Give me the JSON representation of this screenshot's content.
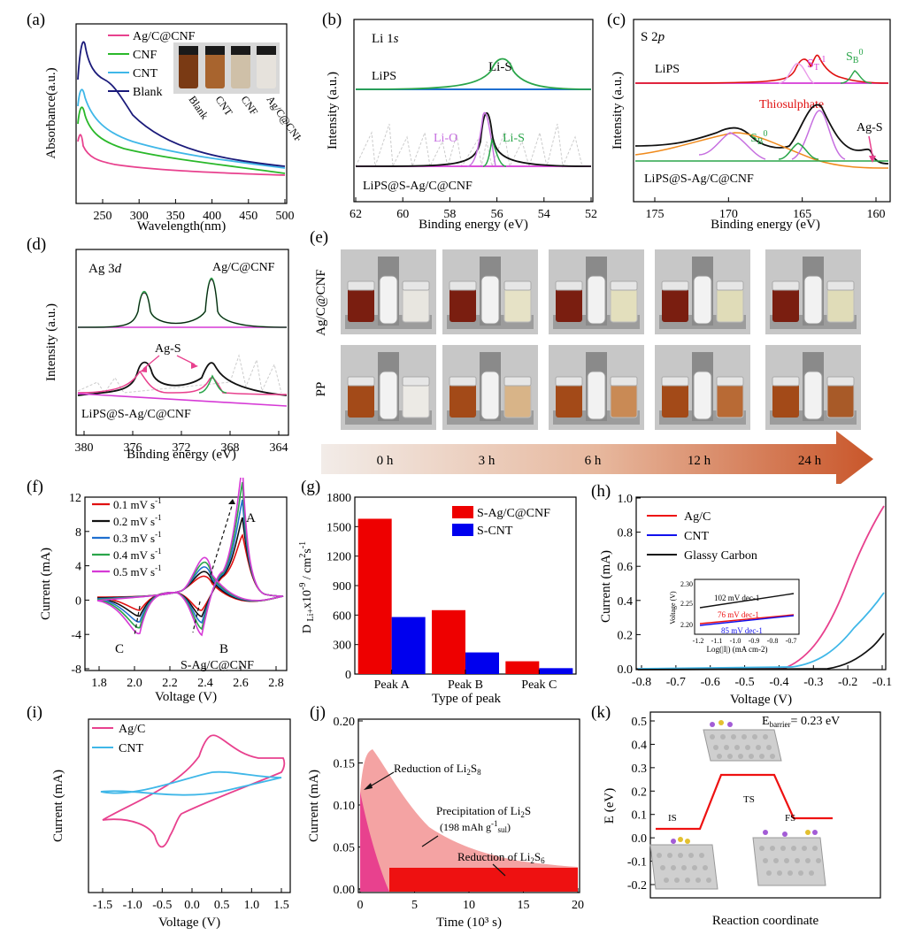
{
  "figure": {
    "labels": [
      "(a)",
      "(b)",
      "(c)",
      "(d)",
      "(e)",
      "(f)",
      "(g)",
      "(h)",
      "(i)",
      "(j)",
      "(k)"
    ]
  },
  "panel_a": {
    "xlabel": "Wavelength(nm)",
    "ylabel": "Absorbance(a.u.)",
    "legend": [
      "Ag/C@CNF",
      "CNF",
      "CNT",
      "Blank"
    ],
    "colors": [
      "#e8418e",
      "#2ab82a",
      "#3fb7e8",
      "#1a1a7a"
    ],
    "ticks_x": [
      "250",
      "300",
      "350",
      "400",
      "450",
      "500"
    ],
    "vial_labels": [
      "Blank",
      "CNT",
      "CNF",
      "Ag/C@CNF"
    ]
  },
  "panel_b": {
    "title": "Li 1s",
    "xlabel": "Binding energy (eV)",
    "ylabel": "Intensity (a.u.)",
    "ticks_x": [
      "62",
      "60",
      "58",
      "56",
      "54",
      "52"
    ],
    "top_label": "LiPS",
    "peak_top": "Li-S",
    "bottom_label": "LiPS@S-Ag/C@CNF",
    "peak_lio": "Li-O",
    "peak_lis": "Li-S"
  },
  "panel_c": {
    "title": "S 2p",
    "xlabel": "Binding energy (eV)",
    "ylabel": "Intensity (a.u.)",
    "ticks_x": [
      "175",
      "170",
      "165",
      "160"
    ],
    "top_label": "LiPS",
    "st": "ST-1",
    "sb_top": "SB0",
    "thio": "Thiosulphate",
    "sb_bot": "SB0",
    "ags": "Ag-S",
    "bottom_label": "LiPS@S-Ag/C@CNF"
  },
  "panel_d": {
    "title": "Ag 3d",
    "xlabel": "Binding energy (eV)",
    "ylabel": "Intensity (a.u.)",
    "ticks_x": [
      "380",
      "376",
      "372",
      "368",
      "364"
    ],
    "top_label": "Ag/C@CNF",
    "ags": "Ag-S",
    "bottom_label": "LiPS@S-Ag/C@CNF"
  },
  "panel_e": {
    "row_labels": [
      "Ag/C@CNF",
      "PP"
    ],
    "times": [
      "0 h",
      "3 h",
      "6 h",
      "12 h",
      "24 h"
    ]
  },
  "panel_f": {
    "xlabel": "Voltage (V)",
    "ylabel": "Current (mA)",
    "legend": [
      "0.1 mV s-1",
      "0.2 mV s-1",
      "0.3 mV s-1",
      "0.4 mV s-1",
      "0.5 mV s-1"
    ],
    "colors": [
      "#e01010",
      "#111111",
      "#1f6fd0",
      "#2aa54a",
      "#d63ad6"
    ],
    "ticks_x": [
      "1.8",
      "2.0",
      "2.2",
      "2.4",
      "2.6",
      "2.8"
    ],
    "ticks_y": [
      "-8",
      "-4",
      "0",
      "4",
      "8",
      "12"
    ],
    "peaks": [
      "A",
      "B",
      "C"
    ],
    "sample": "S-Ag/C@CNF"
  },
  "chart_data": {
    "type": "bar",
    "categories": [
      "Peak A",
      "Peak B",
      "Peak C"
    ],
    "series": [
      {
        "name": "S-Ag/C@CNF",
        "values": [
          1580,
          650,
          130
        ],
        "color": "#ee0000"
      },
      {
        "name": "S-CNT",
        "values": [
          580,
          220,
          60
        ],
        "color": "#0000ee"
      }
    ],
    "xlabel": "Type of peak",
    "ylabel": "D Li+x10-9 / cm2s-1",
    "ylim": [
      0,
      1800
    ],
    "yticks": [
      0,
      300,
      600,
      900,
      1200,
      1500,
      1800
    ]
  },
  "panel_h": {
    "xlabel": "Voltage (V)",
    "ylabel": "Current (mA)",
    "legend": [
      "Ag/C",
      "CNT",
      "Glassy Carbon"
    ],
    "colors": [
      "#ee1111",
      "#1111ee",
      "#111111"
    ],
    "ticks_x": [
      "-0.8",
      "-0.7",
      "-0.6",
      "-0.5",
      "-0.4",
      "-0.3",
      "-0.2",
      "-0.1"
    ],
    "ticks_y": [
      "0.0",
      "0.2",
      "0.4",
      "0.6",
      "0.8",
      "1.0"
    ],
    "inset": {
      "ylabel": "Voltage (V)",
      "xlabel": "Log(|I|) (mA cm-2)",
      "ticks_y": [
        "2.30",
        "2.25",
        "2.20"
      ],
      "ticks_x": [
        "-1.2",
        "-1.1",
        "-1.0",
        "-0.9",
        "-0.8",
        "-0.7"
      ],
      "slopes": [
        "102 mV dec-1",
        "76 mV dec-1",
        "85 mV dec-1"
      ]
    }
  },
  "panel_i": {
    "xlabel": "Voltage (V)",
    "ylabel": "Current (mA)",
    "legend": [
      "Ag/C",
      "CNT"
    ],
    "colors": [
      "#e8418e",
      "#3fb7e8"
    ],
    "ticks_x": [
      "-1.5",
      "-1.0",
      "-0.5",
      "0.0",
      "0.5",
      "1.0",
      "1.5"
    ]
  },
  "panel_j": {
    "xlabel": "Time (10³ s)",
    "ylabel": "Current (mA)",
    "ticks_x": [
      "0",
      "5",
      "10",
      "15",
      "20"
    ],
    "ticks_y": [
      "0.00",
      "0.05",
      "0.10",
      "0.15",
      "0.20"
    ],
    "ann1": "Reduction of Li2S8",
    "ann2": "Precipitation of Li2S",
    "ann2b": "(198 mAh g-1sul)",
    "ann3": "Reduction of Li2S6"
  },
  "panel_k": {
    "xlabel": "Reaction coordinate",
    "ylabel": "E (eV)",
    "ticks_y": [
      "0.5",
      "0.4",
      "0.3",
      "0.2",
      "0.1",
      "0.0",
      "-0.1",
      "-0.2"
    ],
    "barrier": "Ebarrier= 0.23 eV",
    "states": [
      "IS",
      "TS",
      "FS"
    ]
  }
}
